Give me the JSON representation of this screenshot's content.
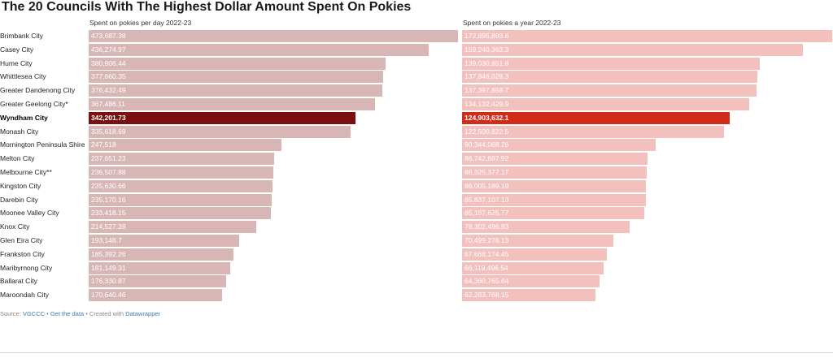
{
  "title": "The 20 Councils With The Highest Dollar Amount Spent On Pokies",
  "colors": {
    "day_bar": "#d8b6b6",
    "day_highlight": "#7b0f0f",
    "year_bar": "#f3c1bd",
    "year_highlight": "#d12c1a",
    "bar_text": "#ffffff"
  },
  "footer": {
    "prefix": "Source: ",
    "source": "VGCCC",
    "sep1": " • ",
    "get_data": "Get the data",
    "sep2": " • Created with ",
    "tool": "Datawrapper"
  },
  "chart_data": [
    {
      "type": "bar",
      "orientation": "horizontal",
      "title": "Spent on pokies per day 2022-23",
      "categories": [
        "Brimbank City",
        "Casey City",
        "Hume City",
        "Whittlesea City",
        "Greater Dandenong City",
        "Greater Geelong City*",
        "Wyndham City",
        "Monash City",
        "Mornington Peninsula Shire",
        "Melton City",
        "Melbourne City**",
        "Kingston City",
        "Darebin City",
        "Moonee Valley City",
        "Knox City",
        "Glen Eira City",
        "Frankston City",
        "Maribyrnong City",
        "Ballarat City",
        "Maroondah City"
      ],
      "values": [
        473687.38,
        436274.97,
        380906.44,
        377660.35,
        376432.49,
        367486.11,
        342201.73,
        335618.69,
        247518,
        237651.23,
        236507.88,
        235630.66,
        235170.16,
        233418.15,
        214527.39,
        193148.7,
        185392.26,
        181149.31,
        176330.87,
        170640.46
      ],
      "value_labels": [
        "473,687.38",
        "436,274.97",
        "380,906.44",
        "377,660.35",
        "376,432.49",
        "367,486.11",
        "342,201.73",
        "335,618.69",
        "247,518",
        "237,651.23",
        "236,507.88",
        "235,630.66",
        "235,170.16",
        "233,418.15",
        "214,527.39",
        "193,148.7",
        "185,392.26",
        "181,149.31",
        "176,330.87",
        "170,640.46"
      ],
      "highlight": "Wyndham City",
      "xlim": [
        0,
        473687.38
      ]
    },
    {
      "type": "bar",
      "orientation": "horizontal",
      "title": "Spent on pokies a year 2022-23",
      "categories": [
        "Brimbank City",
        "Casey City",
        "Hume City",
        "Whittlesea City",
        "Greater Dandenong City",
        "Greater Geelong City*",
        "Wyndham City",
        "Monash City",
        "Mornington Peninsula Shire",
        "Melton City",
        "Melbourne City**",
        "Kingston City",
        "Darebin City",
        "Moonee Valley City",
        "Knox City",
        "Glen Eira City",
        "Frankston City",
        "Maribyrnong City",
        "Ballarat City",
        "Maroondah City"
      ],
      "values": [
        172895893.6,
        159240363.3,
        139030851.8,
        137846028.3,
        137397858.7,
        134132429.9,
        124903632.1,
        122500822.5,
        90344068.26,
        86742697.92,
        86325377.17,
        86005189.19,
        85837107.13,
        85197625.77,
        78302496.93,
        70499276.13,
        67668174.45,
        66119496.54,
        64360765.84,
        62283768.15
      ],
      "value_labels": [
        "172,895,893.6",
        "159,240,363.3",
        "139,030,851.8",
        "137,846,028.3",
        "137,397,858.7",
        "134,132,429.9",
        "124,903,632.1",
        "122,500,822.5",
        "90,344,068.26",
        "86,742,697.92",
        "86,325,377.17",
        "86,005,189.19",
        "85,837,107.13",
        "85,197,625.77",
        "78,302,496.93",
        "70,499,276.13",
        "67,668,174.45",
        "66,119,496.54",
        "64,360,765.84",
        "62,283,768.15"
      ],
      "highlight": "Wyndham City",
      "xlim": [
        0,
        172895893.6
      ]
    }
  ]
}
